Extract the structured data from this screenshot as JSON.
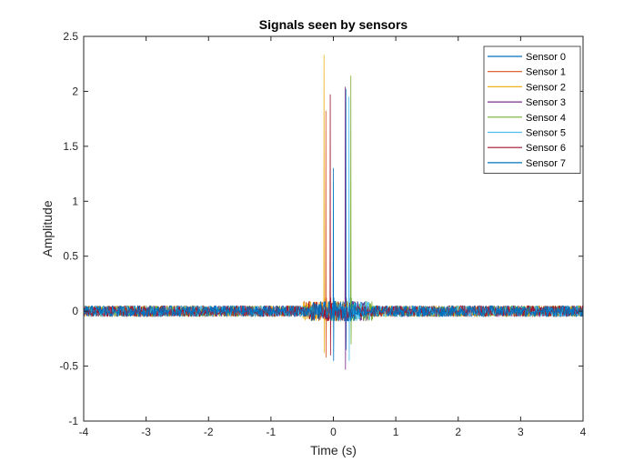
{
  "chart_data": {
    "type": "line",
    "title": "Signals seen by sensors",
    "xlabel": "Time (s)",
    "ylabel": "Amplitude",
    "xlim": [
      -4,
      4
    ],
    "ylim": [
      -1,
      2.5
    ],
    "x_ticks": [
      -4,
      -3,
      -2,
      -1,
      0,
      1,
      2,
      3,
      4
    ],
    "x_tick_labels": [
      "-4",
      "-3",
      "-2",
      "-1",
      "0",
      "1",
      "2",
      "3",
      "4"
    ],
    "y_ticks": [
      -1,
      -0.5,
      0,
      0.5,
      1,
      1.5,
      2,
      2.5
    ],
    "y_tick_labels": [
      "-1",
      "-0.5",
      "0",
      "0.5",
      "1",
      "1.5",
      "2",
      "2.5"
    ],
    "grid": false,
    "legend_position": "top-right",
    "noise_amplitude": 0.05,
    "series": [
      {
        "name": "Sensor 0",
        "color": "#0072BD",
        "peak_time": 0.2,
        "peak_value": 2.02,
        "min_value": -0.35
      },
      {
        "name": "Sensor 1",
        "color": "#D95319",
        "peak_time": -0.12,
        "peak_value": 1.82,
        "min_value": -0.42
      },
      {
        "name": "Sensor 2",
        "color": "#EDB120",
        "peak_time": -0.15,
        "peak_value": 2.33,
        "min_value": -0.38
      },
      {
        "name": "Sensor 3",
        "color": "#7E2F8E",
        "peak_time": 0.19,
        "peak_value": 2.04,
        "min_value": -0.53
      },
      {
        "name": "Sensor 4",
        "color": "#77AC30",
        "peak_time": 0.28,
        "peak_value": 2.14,
        "min_value": -0.3
      },
      {
        "name": "Sensor 5",
        "color": "#4DBEEE",
        "peak_time": 0.25,
        "peak_value": 1.95,
        "min_value": -0.45
      },
      {
        "name": "Sensor 6",
        "color": "#A2142F",
        "peak_time": -0.05,
        "peak_value": 1.97,
        "min_value": -0.4
      },
      {
        "name": "Sensor 7",
        "color": "#0072BD",
        "peak_time": 0.0,
        "peak_value": 1.3,
        "min_value": -0.45
      }
    ]
  }
}
